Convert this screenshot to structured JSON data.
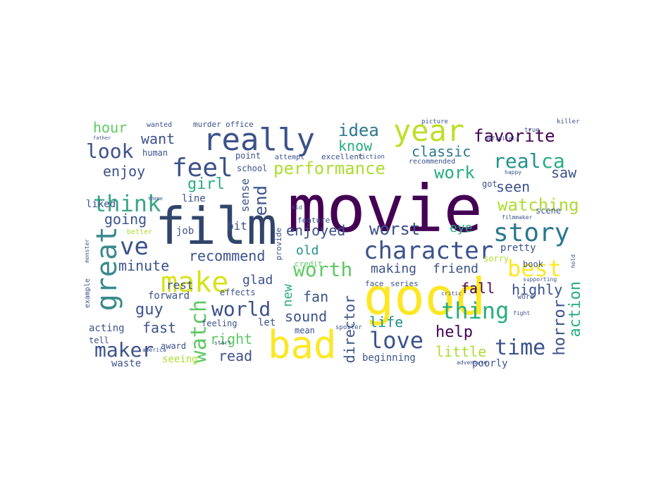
{
  "colors": {
    "dark_purple": "#440154",
    "indigo": "#3b528b",
    "navy": "#31446b",
    "teal": "#21918c",
    "teal_green": "#27ad81",
    "green": "#5ec962",
    "yellow_green": "#addc30",
    "yellow": "#fde725"
  },
  "words": [
    {
      "t": "movie",
      "c": "#440154"
    },
    {
      "t": "film",
      "c": "#31446b"
    },
    {
      "t": "good",
      "c": "#fde725"
    },
    {
      "t": "bad",
      "c": "#fde725"
    },
    {
      "t": "really",
      "c": "#3b528b"
    },
    {
      "t": "year",
      "c": "#bddf26"
    },
    {
      "t": "great",
      "c": "#3b8a8c"
    },
    {
      "t": "make",
      "c": "#d8e219"
    },
    {
      "t": "character",
      "c": "#3b528b"
    },
    {
      "t": "story",
      "c": "#2a788e"
    },
    {
      "t": "feel",
      "c": "#3b528b"
    },
    {
      "t": "ve",
      "c": "#3b528b"
    },
    {
      "t": "think",
      "c": "#3aa68a"
    },
    {
      "t": "best",
      "c": "#fde725"
    },
    {
      "t": "thing",
      "c": "#27ad81"
    },
    {
      "t": "love",
      "c": "#3b528b"
    },
    {
      "t": "watch",
      "c": "#5ec962"
    },
    {
      "t": "world",
      "c": "#3b528b"
    },
    {
      "t": "time",
      "c": "#3b528b"
    },
    {
      "t": "performance",
      "c": "#addc30"
    },
    {
      "t": "look",
      "c": "#3b528b"
    },
    {
      "t": "end",
      "c": "#3b528b"
    },
    {
      "t": "maker",
      "c": "#3b528b"
    },
    {
      "t": "real",
      "c": "#21918c"
    },
    {
      "t": "ca",
      "c": "#27ad81"
    },
    {
      "t": "watching",
      "c": "#addc30"
    },
    {
      "t": "worst",
      "c": "#3b528b"
    },
    {
      "t": "worth",
      "c": "#5ec962"
    },
    {
      "t": "idea",
      "c": "#2a788e"
    },
    {
      "t": "know",
      "c": "#27ad81"
    },
    {
      "t": "favorite",
      "c": "#440154"
    },
    {
      "t": "classic",
      "c": "#2a788e"
    },
    {
      "t": "work",
      "c": "#27ad81"
    },
    {
      "t": "seen",
      "c": "#3b528b"
    },
    {
      "t": "saw",
      "c": "#3b528b"
    },
    {
      "t": "recommend",
      "c": "#3b528b"
    },
    {
      "t": "enjoyed",
      "c": "#3b528b"
    },
    {
      "t": "girl",
      "c": "#27ad81"
    },
    {
      "t": "want",
      "c": "#3b528b"
    },
    {
      "t": "enjoy",
      "c": "#3b528b"
    },
    {
      "t": "hour",
      "c": "#5ec962"
    },
    {
      "t": "going",
      "c": "#3b528b"
    },
    {
      "t": "minute",
      "c": "#3b528b"
    },
    {
      "t": "glad",
      "c": "#3b528b"
    },
    {
      "t": "new",
      "c": "#27ad81"
    },
    {
      "t": "guy",
      "c": "#3b528b"
    },
    {
      "t": "fast",
      "c": "#3b528b"
    },
    {
      "t": "right",
      "c": "#5ec962"
    },
    {
      "t": "read",
      "c": "#3b528b"
    },
    {
      "t": "sound",
      "c": "#3b528b"
    },
    {
      "t": "director",
      "c": "#3b528b"
    },
    {
      "t": "life",
      "c": "#21918c"
    },
    {
      "t": "little",
      "c": "#addc30"
    },
    {
      "t": "help",
      "c": "#440154"
    },
    {
      "t": "horror",
      "c": "#3b528b"
    },
    {
      "t": "action",
      "c": "#27ad81"
    },
    {
      "t": "highly",
      "c": "#3b528b"
    },
    {
      "t": "fall",
      "c": "#440154"
    },
    {
      "t": "fan",
      "c": "#3b528b"
    },
    {
      "t": "making",
      "c": "#3b528b"
    },
    {
      "t": "friend",
      "c": "#3b528b"
    },
    {
      "t": "old",
      "c": "#21918c"
    },
    {
      "t": "eye",
      "c": "#27ad81"
    },
    {
      "t": "pretty",
      "c": "#3b528b"
    },
    {
      "t": "sense",
      "c": "#3b528b"
    },
    {
      "t": "bit",
      "c": "#3b528b"
    },
    {
      "t": "line",
      "c": "#3b528b"
    },
    {
      "t": "liked",
      "c": "#3b528b"
    },
    {
      "t": "job",
      "c": "#3b528b"
    },
    {
      "t": "rest",
      "c": "#3b528b"
    },
    {
      "t": "forward",
      "c": "#3b528b"
    },
    {
      "t": "acting",
      "c": "#3b528b"
    },
    {
      "t": "tell",
      "c": "#3b528b"
    },
    {
      "t": "award",
      "c": "#3b528b"
    },
    {
      "t": "seeing",
      "c": "#addc30"
    },
    {
      "t": "waste",
      "c": "#3b528b"
    },
    {
      "t": "feeling",
      "c": "#3b528b"
    },
    {
      "t": "let",
      "c": "#3b528b"
    },
    {
      "t": "mean",
      "c": "#3b528b"
    },
    {
      "t": "effects",
      "c": "#3b528b"
    },
    {
      "t": "beginning",
      "c": "#3b528b"
    },
    {
      "t": "poorly",
      "c": "#3b528b"
    },
    {
      "t": "book",
      "c": "#3b528b"
    },
    {
      "t": "sorry",
      "c": "#addc30"
    },
    {
      "t": "scene",
      "c": "#3b528b"
    },
    {
      "t": "got",
      "c": "#3b528b"
    },
    {
      "t": "school",
      "c": "#3b528b"
    },
    {
      "t": "point",
      "c": "#3b528b"
    },
    {
      "t": "human",
      "c": "#3b528b"
    },
    {
      "t": "murder",
      "c": "#3b528b"
    },
    {
      "t": "office",
      "c": "#3b528b"
    },
    {
      "t": "wanted",
      "c": "#3b528b"
    },
    {
      "t": "attempt",
      "c": "#3b528b"
    },
    {
      "t": "excellent",
      "c": "#3b528b"
    },
    {
      "t": "feature",
      "c": "#3b528b"
    },
    {
      "t": "recommended",
      "c": "#3b528b"
    },
    {
      "t": "series",
      "c": "#3b528b"
    },
    {
      "t": "face",
      "c": "#3b528b"
    },
    {
      "t": "credit",
      "c": "#5ec962"
    },
    {
      "t": "provide",
      "c": "#3b528b"
    },
    {
      "t": "example",
      "c": "#3b528b"
    },
    {
      "t": "word",
      "c": "#3b528b"
    },
    {
      "t": "better",
      "c": "#addc30"
    },
    {
      "t": "spoiler",
      "c": "#3b528b"
    },
    {
      "t": "fiction",
      "c": "#3b528b"
    },
    {
      "t": "true",
      "c": "#3b528b"
    },
    {
      "t": "picture",
      "c": "#3b528b"
    },
    {
      "t": "killer",
      "c": "#3b528b"
    },
    {
      "t": "america",
      "c": "#3b528b"
    },
    {
      "t": "adventure",
      "c": "#3b528b"
    },
    {
      "t": "fight",
      "c": "#3b528b"
    },
    {
      "t": "supporting",
      "c": "#3b528b"
    },
    {
      "t": "critic",
      "c": "#3b528b"
    },
    {
      "t": "definitely",
      "c": "#3b528b"
    },
    {
      "t": "happy",
      "c": "#3b528b"
    },
    {
      "t": "kid",
      "c": "#3b528b"
    },
    {
      "t": "monster",
      "c": "#3b528b"
    },
    {
      "t": "hold",
      "c": "#3b528b"
    },
    {
      "t": "theme",
      "c": "#3b528b"
    },
    {
      "t": "start",
      "c": "#3b528b"
    },
    {
      "t": "filmmaker",
      "c": "#3b528b"
    },
    {
      "t": "father",
      "c": "#3b528b"
    }
  ]
}
